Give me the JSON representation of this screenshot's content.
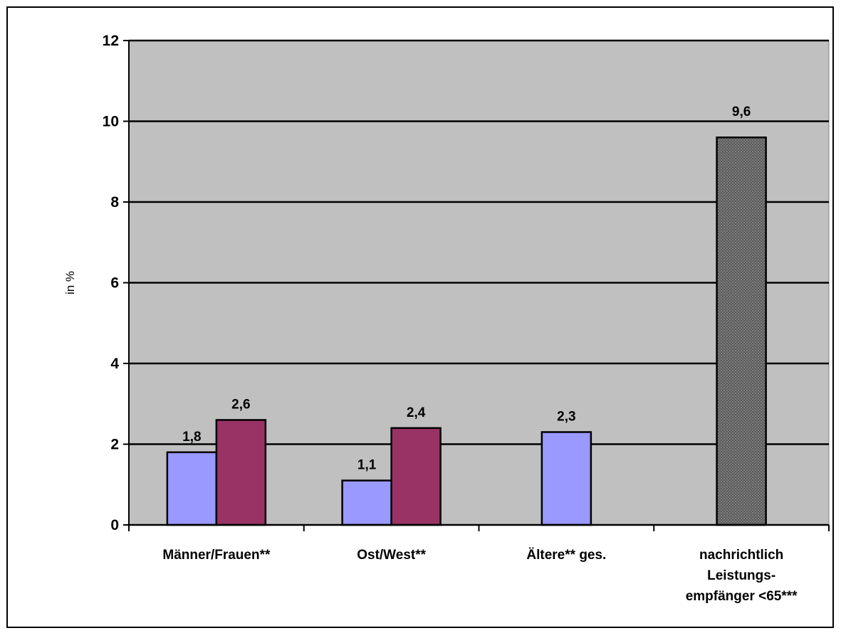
{
  "chart_data": {
    "type": "bar",
    "ylabel": "in %",
    "ylim": [
      0,
      12
    ],
    "yticks": [
      "0",
      "2",
      "4",
      "6",
      "8",
      "10",
      "12"
    ],
    "grid": true,
    "legend": "none",
    "categories": [
      [
        "Männer/Frauen**"
      ],
      [
        "Ost/West**"
      ],
      [
        "Ältere** ges."
      ],
      [
        "nachrichtlich",
        "Leistungs-",
        "empfänger <65***"
      ]
    ],
    "bars": [
      {
        "category_index": 0,
        "slot": 0,
        "value": 1.8,
        "label": "1,8",
        "color": "#9999ff"
      },
      {
        "category_index": 0,
        "slot": 1,
        "value": 2.6,
        "label": "2,6",
        "color": "#993366"
      },
      {
        "category_index": 1,
        "slot": 0,
        "value": 1.1,
        "label": "1,1",
        "color": "#9999ff"
      },
      {
        "category_index": 1,
        "slot": 1,
        "value": 2.4,
        "label": "2,4",
        "color": "#993366"
      },
      {
        "category_index": 2,
        "slot": 0,
        "value": 2.3,
        "label": "2,3",
        "color": "#9999ff"
      },
      {
        "category_index": 3,
        "slot": 0,
        "value": 9.6,
        "label": "9,6",
        "color": "#6e6e6e",
        "pattern": "dotted"
      }
    ],
    "colors": {
      "plot_background": "#c0c0c0",
      "gridline": "#000000"
    }
  }
}
